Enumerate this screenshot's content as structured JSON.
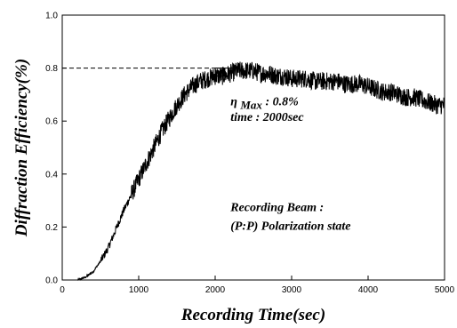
{
  "chart_data": {
    "type": "line",
    "xlabel": "Recording Time(sec)",
    "ylabel": "Diffraction Efficiency(%)",
    "xlim": [
      0,
      5000
    ],
    "ylim": [
      0.0,
      1.0
    ],
    "x_ticks": [
      0,
      1000,
      2000,
      3000,
      4000,
      5000
    ],
    "x_tick_labels": [
      "0",
      "1000",
      "2000",
      "3000",
      "4000",
      "5000"
    ],
    "y_ticks": [
      0.0,
      0.2,
      0.4,
      0.6,
      0.8,
      1.0
    ],
    "y_tick_labels": [
      "0.0",
      "0.2",
      "0.4",
      "0.6",
      "0.8",
      "1.0"
    ],
    "grid": false,
    "series": [
      {
        "color": "#000000",
        "noisy": true,
        "x": [
          200,
          300,
          400,
          500,
          600,
          700,
          800,
          900,
          1000,
          1100,
          1200,
          1300,
          1400,
          1500,
          1600,
          1700,
          1800,
          1900,
          2000,
          2100,
          2200,
          2300,
          2400,
          2500,
          2600,
          2700,
          2800,
          2900,
          3000,
          3100,
          3200,
          3300,
          3400,
          3500,
          3600,
          3700,
          3800,
          3900,
          4000,
          4100,
          4200,
          4300,
          4400,
          4500,
          4600,
          4700,
          4800,
          4900,
          5000
        ],
        "y": [
          0.0,
          0.01,
          0.03,
          0.07,
          0.12,
          0.19,
          0.26,
          0.32,
          0.38,
          0.44,
          0.5,
          0.56,
          0.61,
          0.66,
          0.7,
          0.73,
          0.75,
          0.76,
          0.77,
          0.77,
          0.78,
          0.79,
          0.79,
          0.79,
          0.78,
          0.78,
          0.77,
          0.77,
          0.76,
          0.76,
          0.76,
          0.75,
          0.75,
          0.75,
          0.75,
          0.74,
          0.74,
          0.74,
          0.73,
          0.72,
          0.71,
          0.71,
          0.7,
          0.69,
          0.69,
          0.68,
          0.67,
          0.66,
          0.66
        ]
      }
    ],
    "reference_lines": [
      {
        "style": "dashed",
        "from": [
          0,
          0.8
        ],
        "to": [
          2000,
          0.8
        ]
      },
      {
        "style": "solid",
        "from": [
          2000,
          0.8
        ],
        "to": [
          2250,
          0.8
        ]
      }
    ],
    "marker_box": {
      "x": 2000,
      "y": 0.8
    },
    "annotations": [
      {
        "lines": [
          "η",
          "Max",
          " : 0.8%"
        ],
        "x": 2200,
        "y": 0.66
      },
      {
        "lines": [
          "time : 2000sec"
        ],
        "x": 2200,
        "y": 0.6
      },
      {
        "lines": [
          "Recording Beam :"
        ],
        "x": 2200,
        "y": 0.26
      },
      {
        "lines": [
          "(P:P) Polarization state"
        ],
        "x": 2200,
        "y": 0.19
      }
    ]
  }
}
